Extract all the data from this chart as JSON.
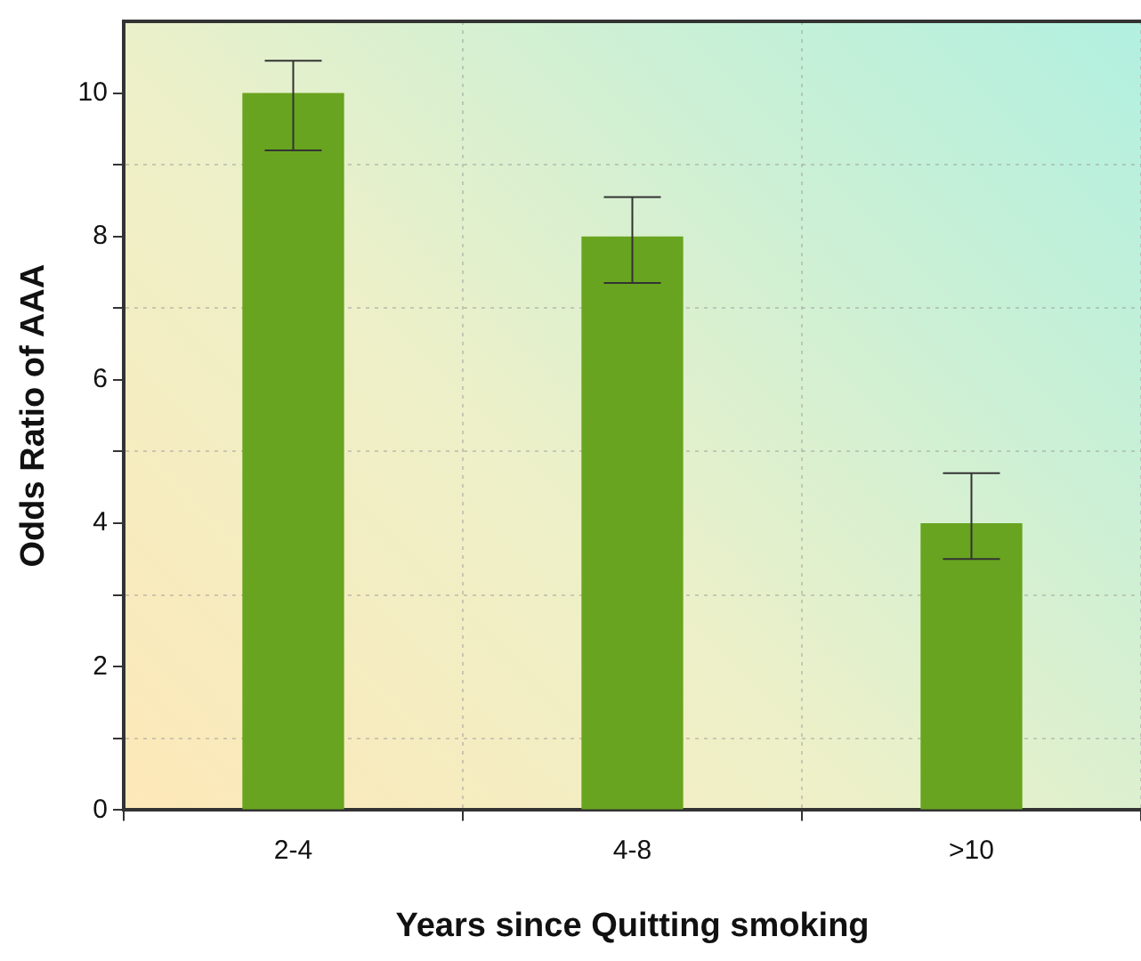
{
  "chart_data": {
    "type": "bar",
    "xlabel": "Years since Quitting smoking",
    "ylabel": "Odds Ratio of AAA",
    "categories": [
      "2-4",
      "4-8",
      ">10"
    ],
    "values": [
      10,
      8,
      4
    ],
    "errors": [
      [
        9.2,
        10.45
      ],
      [
        7.35,
        8.55
      ],
      [
        3.5,
        4.7
      ]
    ],
    "color": "#68a41f",
    "ylim": [
      0,
      11
    ],
    "yticks": [
      0,
      {
        "value": 1,
        "label": null
      },
      2,
      {
        "value": 3,
        "label": null
      },
      4,
      {
        "value": 5,
        "label": null
      },
      6,
      {
        "value": 7,
        "label": null
      },
      8,
      {
        "value": 9,
        "label": null
      },
      10
    ],
    "grid": true,
    "legend": false
  }
}
